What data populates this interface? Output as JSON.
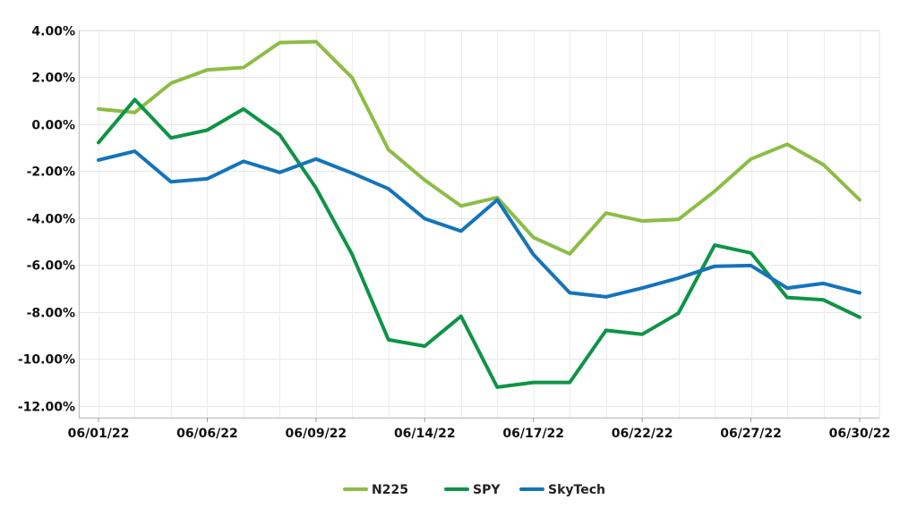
{
  "chart_data": {
    "type": "line",
    "title": "",
    "xlabel": "",
    "ylabel": "",
    "ylim": [
      -0.125,
      0.04
    ],
    "x_tick_labels": [
      "06/01/22",
      "06/06/22",
      "06/09/22",
      "06/14/22",
      "06/17/22",
      "06/22/22",
      "06/27/22",
      "06/30/22"
    ],
    "x_tick_positions": [
      0,
      3,
      6,
      9,
      12,
      15,
      18,
      21
    ],
    "y_ticks": [
      0.04,
      0.02,
      0.0,
      -0.02,
      -0.04,
      -0.06,
      -0.08,
      -0.1,
      -0.12
    ],
    "y_tick_labels": [
      "4.00%",
      "2.00%",
      "0.00%",
      "-2.00%",
      "-4.00%",
      "-6.00%",
      "-8.00%",
      "-10.00%",
      "-12.00%"
    ],
    "grid": true,
    "legend_position": "bottom-center",
    "x": [
      "06/01/22",
      "06/02/22",
      "06/03/22",
      "06/06/22",
      "06/07/22",
      "06/08/22",
      "06/09/22",
      "06/10/22",
      "06/13/22",
      "06/14/22",
      "06/15/22",
      "06/16/22",
      "06/17/22",
      "06/20/22",
      "06/21/22",
      "06/22/22",
      "06/23/22",
      "06/24/22",
      "06/27/22",
      "06/28/22",
      "06/29/22",
      "06/30/22"
    ],
    "series": [
      {
        "name": "N225",
        "color": "#8cbd45",
        "values": [
          0.0065,
          0.005,
          0.0175,
          0.0232,
          0.0242,
          0.0348,
          0.0352,
          0.0198,
          -0.0108,
          -0.0238,
          -0.0348,
          -0.0312,
          -0.0482,
          -0.0552,
          -0.0378,
          -0.0412,
          -0.0405,
          -0.0285,
          -0.0148,
          -0.0085,
          -0.0172,
          -0.0322
        ]
      },
      {
        "name": "SPY",
        "color": "#0e9446",
        "values": [
          -0.0078,
          0.0105,
          -0.0058,
          -0.0025,
          0.0065,
          -0.0045,
          -0.0272,
          -0.0555,
          -0.0918,
          -0.0945,
          -0.0818,
          -0.112,
          -0.11,
          -0.11,
          -0.0878,
          -0.0895,
          -0.0805,
          -0.0515,
          -0.0548,
          -0.0738,
          -0.0748,
          -0.0822
        ]
      },
      {
        "name": "SkyTech",
        "color": "#1474bb",
        "values": [
          -0.0152,
          -0.0115,
          -0.0245,
          -0.0232,
          -0.0158,
          -0.0205,
          -0.0148,
          -0.0208,
          -0.0275,
          -0.0402,
          -0.0455,
          -0.0322,
          -0.0555,
          -0.0718,
          -0.0735,
          -0.0698,
          -0.0655,
          -0.0605,
          -0.0602,
          -0.0698,
          -0.0678,
          -0.0718
        ]
      }
    ]
  }
}
